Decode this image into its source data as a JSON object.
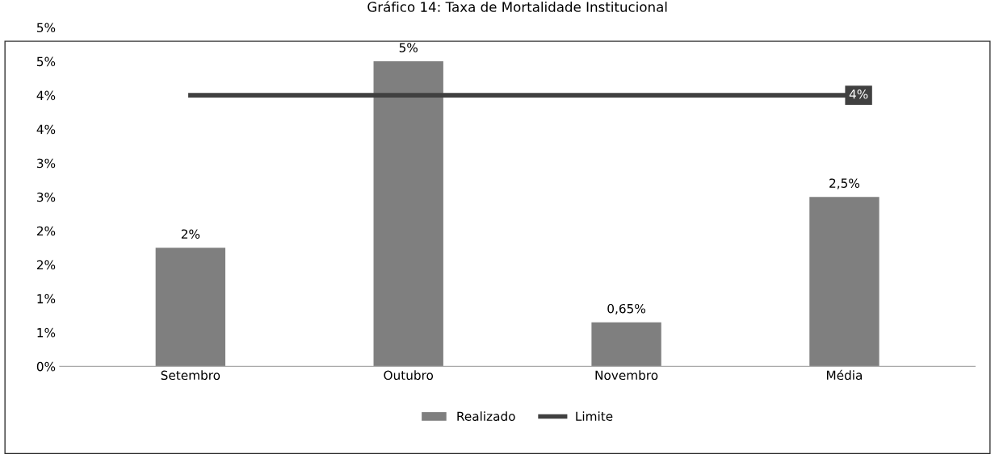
{
  "chart_data": {
    "type": "bar",
    "title": "Gráfico 14: Taxa de Mortalidade Institucional",
    "categories": [
      "Setembro",
      "Outubro",
      "Novembro",
      "Média"
    ],
    "series": [
      {
        "name": "Realizado",
        "color": "#7f7f7f",
        "values": [
          1.75,
          4.5,
          0.65,
          2.5
        ],
        "value_labels": [
          "2%",
          "5%",
          "0,65%",
          "2,5%"
        ]
      },
      {
        "name": "Limite",
        "type": "line",
        "color": "#404040",
        "values": [
          4,
          4,
          4,
          4
        ],
        "value_labels": [
          null,
          null,
          null,
          "4%"
        ]
      }
    ],
    "ylim": [
      0,
      5.0
    ],
    "yticks": [
      {
        "value": 0,
        "label": "0%"
      },
      {
        "value": 0.5,
        "label": "1%"
      },
      {
        "value": 1.0,
        "label": "1%"
      },
      {
        "value": 1.5,
        "label": "2%"
      },
      {
        "value": 2.0,
        "label": "2%"
      },
      {
        "value": 2.5,
        "label": "3%"
      },
      {
        "value": 3.0,
        "label": "3%"
      },
      {
        "value": 3.5,
        "label": "4%"
      },
      {
        "value": 4.0,
        "label": "4%"
      },
      {
        "value": 4.5,
        "label": "5%"
      },
      {
        "value": 5.0,
        "label": "5%"
      }
    ],
    "grid": false,
    "legend": "bottom",
    "marker": "none",
    "line_style": "solid"
  }
}
